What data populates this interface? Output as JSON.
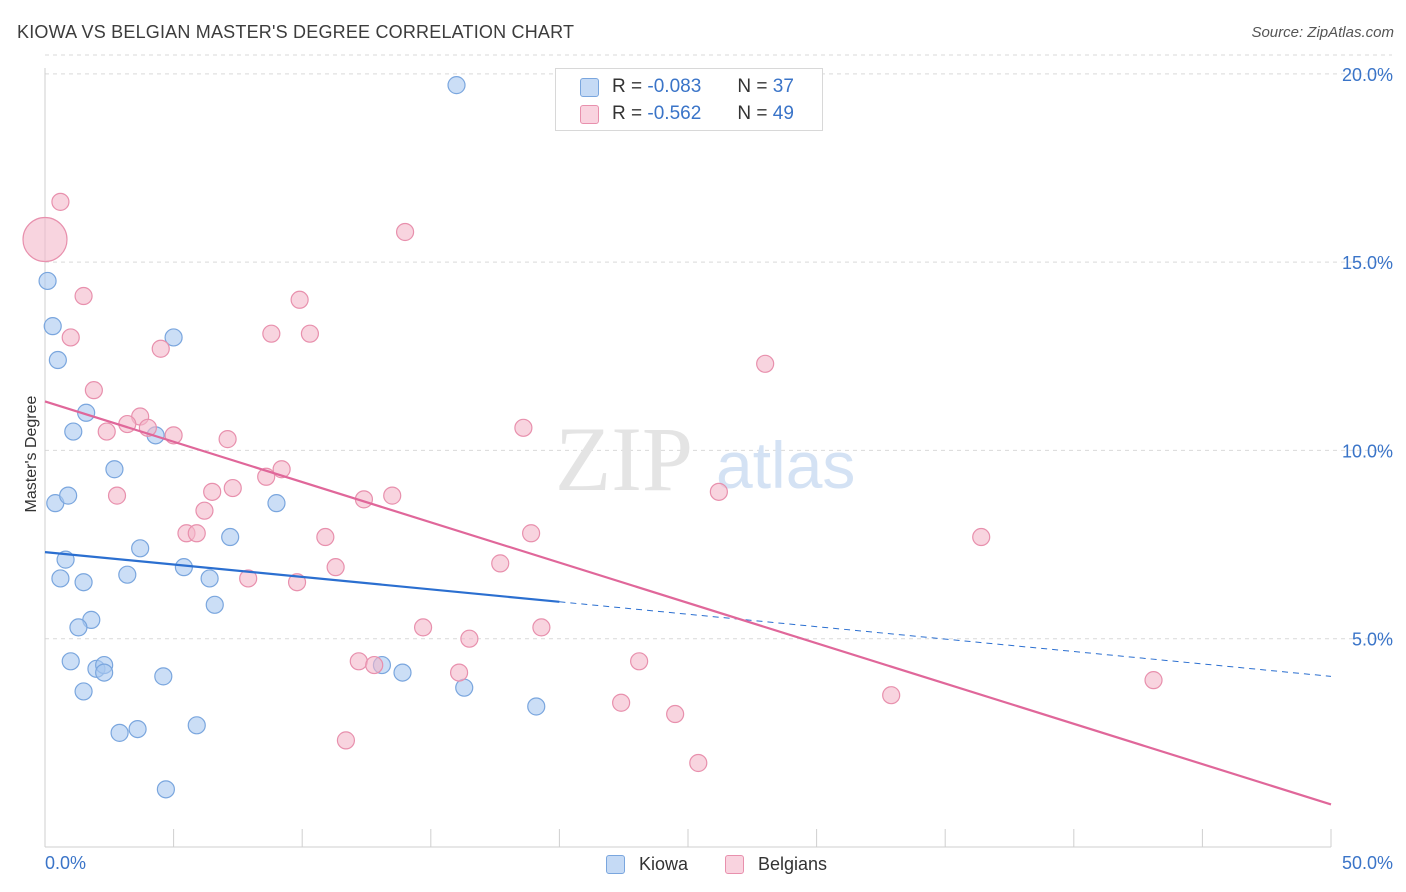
{
  "header": {
    "title": "KIOWA VS BELGIAN MASTER'S DEGREE CORRELATION CHART",
    "source": "Source: ZipAtlas.com"
  },
  "watermark": {
    "zip": "ZIP",
    "atlas": "atlas"
  },
  "legend": {
    "rows": [
      {
        "r_label": "R =",
        "r_value": "-0.083",
        "n_label": "N =",
        "n_value": "37",
        "color": "#a9c8f0"
      },
      {
        "r_label": "R =",
        "r_value": "-0.562",
        "n_label": "N =",
        "n_value": "49",
        "color": "#f4b7ca"
      }
    ]
  },
  "bottom_legend": {
    "kiowa": "Kiowa",
    "belgians": "Belgians"
  },
  "colors": {
    "kiowa_fill": "#a9c8f0",
    "kiowa_stroke": "#7aa6de",
    "kiowa_line": "#2b6fd0",
    "belgian_fill": "#f4b7ca",
    "belgian_stroke": "#e890ad",
    "belgian_line": "#e0679a",
    "tick_label": "#3a74c8",
    "grid": "#d9d9d9"
  },
  "chart_data": {
    "type": "scatter",
    "title": "KIOWA VS BELGIAN MASTER'S DEGREE CORRELATION CHART",
    "xlabel": "",
    "ylabel": "Master's Degree",
    "xlim": [
      0,
      50
    ],
    "ylim": [
      0,
      20.5
    ],
    "x_tick_labels": [
      "0.0%",
      "50.0%"
    ],
    "y_ticks": [
      5,
      10,
      15,
      20
    ],
    "y_tick_labels": [
      "5.0%",
      "10.0%",
      "15.0%",
      "20.0%"
    ],
    "grid": true,
    "legend_position": "top-center",
    "series": [
      {
        "name": "Kiowa",
        "R": -0.083,
        "N": 37,
        "trend": {
          "x0": 0,
          "y0": 7.3,
          "x_solid_end": 20,
          "x1": 50,
          "y1": 4.0
        },
        "points": [
          [
            0.1,
            14.5
          ],
          [
            0.3,
            13.3
          ],
          [
            0.5,
            12.4
          ],
          [
            1.6,
            11.0
          ],
          [
            1.1,
            10.5
          ],
          [
            4.3,
            10.4
          ],
          [
            0.4,
            8.6
          ],
          [
            0.9,
            8.8
          ],
          [
            2.7,
            9.5
          ],
          [
            5.0,
            13.0
          ],
          [
            9.0,
            8.6
          ],
          [
            3.7,
            7.4
          ],
          [
            0.8,
            7.1
          ],
          [
            0.6,
            6.6
          ],
          [
            1.5,
            6.5
          ],
          [
            3.2,
            6.7
          ],
          [
            5.4,
            6.9
          ],
          [
            7.2,
            7.7
          ],
          [
            6.4,
            6.6
          ],
          [
            6.6,
            5.9
          ],
          [
            1.8,
            5.5
          ],
          [
            1.3,
            5.3
          ],
          [
            1.0,
            4.4
          ],
          [
            2.0,
            4.2
          ],
          [
            2.3,
            4.3
          ],
          [
            2.3,
            4.1
          ],
          [
            4.6,
            4.0
          ],
          [
            13.1,
            4.3
          ],
          [
            13.9,
            4.1
          ],
          [
            1.5,
            3.6
          ],
          [
            16.3,
            3.7
          ],
          [
            19.1,
            3.2
          ],
          [
            2.9,
            2.5
          ],
          [
            3.6,
            2.6
          ],
          [
            5.9,
            2.7
          ],
          [
            4.7,
            1.0
          ],
          [
            16.0,
            19.7
          ]
        ]
      },
      {
        "name": "Belgians",
        "R": -0.562,
        "N": 49,
        "trend": {
          "x0": 0,
          "y0": 11.3,
          "x1": 50,
          "y1": 0.6
        },
        "points": [
          [
            0.0,
            15.6
          ],
          [
            0.6,
            16.6
          ],
          [
            14.0,
            15.8
          ],
          [
            1.5,
            14.1
          ],
          [
            9.9,
            14.0
          ],
          [
            1.0,
            13.0
          ],
          [
            8.8,
            13.1
          ],
          [
            10.3,
            13.1
          ],
          [
            4.5,
            12.7
          ],
          [
            28.0,
            12.3
          ],
          [
            1.9,
            11.6
          ],
          [
            3.7,
            10.9
          ],
          [
            3.2,
            10.7
          ],
          [
            4.0,
            10.6
          ],
          [
            2.4,
            10.5
          ],
          [
            5.0,
            10.4
          ],
          [
            7.1,
            10.3
          ],
          [
            18.6,
            10.6
          ],
          [
            9.2,
            9.5
          ],
          [
            8.6,
            9.3
          ],
          [
            7.3,
            9.0
          ],
          [
            6.5,
            8.9
          ],
          [
            2.8,
            8.8
          ],
          [
            12.4,
            8.7
          ],
          [
            13.5,
            8.8
          ],
          [
            26.2,
            8.9
          ],
          [
            6.2,
            8.4
          ],
          [
            5.5,
            7.8
          ],
          [
            5.9,
            7.8
          ],
          [
            10.9,
            7.7
          ],
          [
            18.9,
            7.8
          ],
          [
            36.4,
            7.7
          ],
          [
            11.3,
            6.9
          ],
          [
            17.7,
            7.0
          ],
          [
            7.9,
            6.6
          ],
          [
            9.8,
            6.5
          ],
          [
            14.7,
            5.3
          ],
          [
            16.5,
            5.0
          ],
          [
            19.3,
            5.3
          ],
          [
            12.2,
            4.4
          ],
          [
            12.8,
            4.3
          ],
          [
            16.1,
            4.1
          ],
          [
            23.1,
            4.4
          ],
          [
            22.4,
            3.3
          ],
          [
            32.9,
            3.5
          ],
          [
            43.1,
            3.9
          ],
          [
            24.5,
            3.0
          ],
          [
            11.7,
            2.3
          ],
          [
            25.4,
            1.7
          ]
        ]
      }
    ]
  }
}
